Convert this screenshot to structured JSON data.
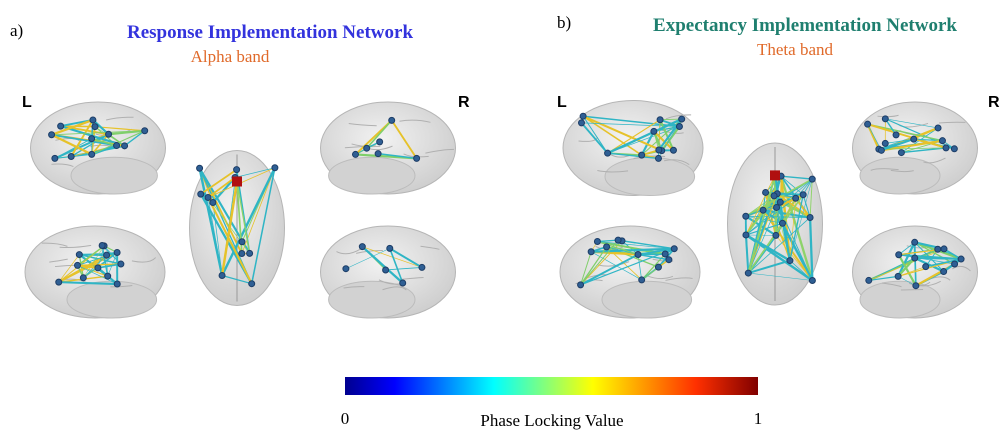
{
  "panels": [
    {
      "label": "a)",
      "title": "Response Implementation Network",
      "subtitle": "Alpha band",
      "left": "L",
      "right": "R"
    },
    {
      "label": "b)",
      "title": "Expectancy Implementation Network",
      "subtitle": "Theta band",
      "left": "L",
      "right": "R"
    }
  ],
  "colorbar": {
    "min": 0,
    "label": "Phase Locking Value",
    "max": 1
  }
}
